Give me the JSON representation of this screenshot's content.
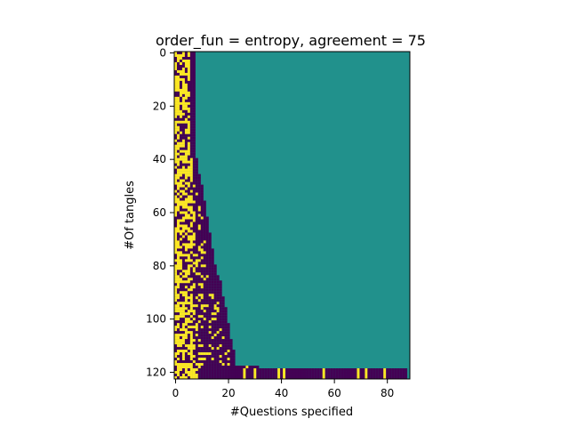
{
  "chart_data": {
    "type": "heatmap",
    "title": "order_fun = entropy, agreement = 75",
    "xlabel": "#Questions specified",
    "ylabel": "#Of tangles",
    "x_ticks": [
      "0",
      "20",
      "40",
      "60",
      "80"
    ],
    "y_ticks": [
      "0",
      "20",
      "40",
      "60",
      "80",
      "100",
      "120"
    ],
    "xlim": [
      -0.5,
      88.5
    ],
    "ylim": [
      122.5,
      -0.5
    ],
    "n_rows": 123,
    "n_cols": 89,
    "colormap": "viridis",
    "value_levels": [
      -1,
      0,
      1
    ],
    "colors": {
      "-1": "#440154",
      "0": "#21918c",
      "1": "#fde725"
    },
    "fill_value": 0,
    "row_lengths": [
      [
        0,
        8
      ],
      [
        20,
        8
      ],
      [
        40,
        9
      ],
      [
        46,
        10
      ],
      [
        50,
        11
      ],
      [
        56,
        12
      ],
      [
        62,
        13
      ],
      [
        68,
        14
      ],
      [
        74,
        15
      ],
      [
        80,
        16
      ],
      [
        84,
        17
      ],
      [
        86,
        18
      ],
      [
        92,
        19
      ],
      [
        96,
        20
      ],
      [
        102,
        21
      ],
      [
        108,
        22
      ],
      [
        112,
        23
      ],
      [
        118,
        32
      ],
      [
        119,
        88
      ]
    ],
    "final_row_yellow_columns": [
      26,
      30,
      39,
      41,
      56,
      69,
      72,
      79
    ]
  }
}
